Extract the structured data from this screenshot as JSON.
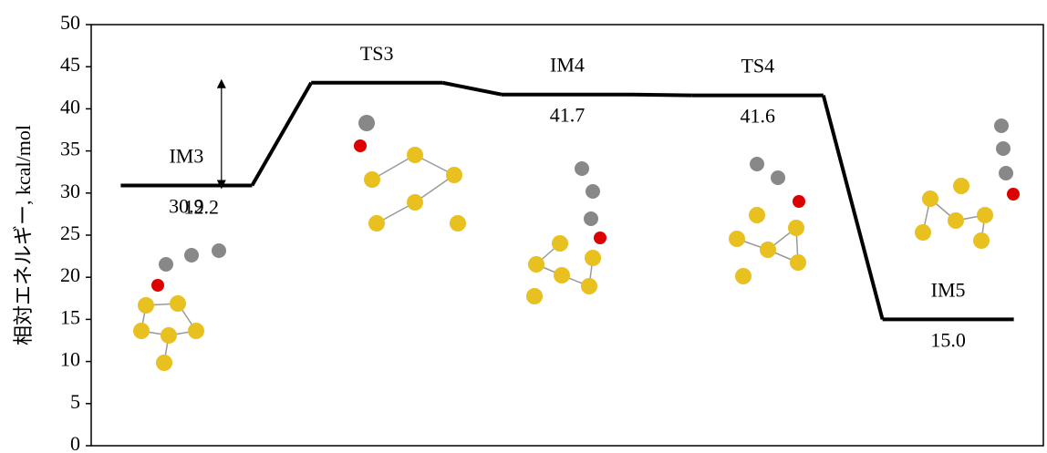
{
  "chart_data": {
    "type": "energy-diagram",
    "y_label": "相対エネルギー, kcal/mol",
    "categories": [
      "IM3",
      "TS3",
      "IM4",
      "TS4",
      "IM5"
    ],
    "values": [
      30.9,
      43.1,
      41.7,
      41.6,
      15.0
    ],
    "value_labels": [
      "30.9",
      null,
      "41.7",
      "41.6",
      "15.0"
    ],
    "color": "#000000",
    "annotations": [
      {
        "text": "12.2"
      }
    ],
    "ylim": [
      0,
      50
    ],
    "yticks": [
      0,
      5,
      10,
      15,
      20,
      25,
      30,
      35,
      40,
      45,
      50
    ]
  }
}
